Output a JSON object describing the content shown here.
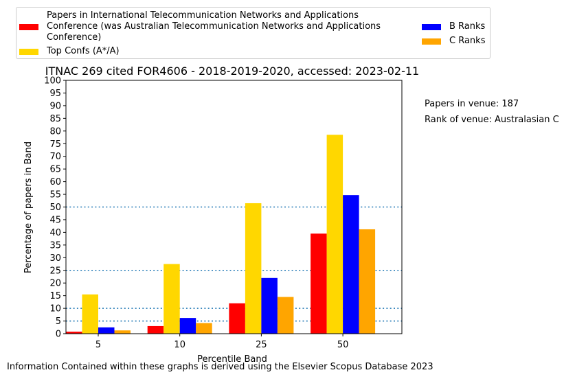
{
  "chart_data": {
    "type": "bar",
    "title": "ITNAC 269 cited FOR4606 - 2018-2019-2020, accessed: 2023-02-11",
    "xlabel": "Percentile Band",
    "ylabel": "Percentage of papers in Band",
    "categories": [
      "5",
      "10",
      "25",
      "50"
    ],
    "ylim": [
      0,
      100
    ],
    "yticks": [
      0,
      5,
      10,
      15,
      20,
      25,
      30,
      35,
      40,
      45,
      50,
      55,
      60,
      65,
      70,
      75,
      80,
      85,
      90,
      95,
      100
    ],
    "reference_lines": [
      5,
      10,
      25,
      50
    ],
    "series": [
      {
        "name": "Papers in International Telecommunication Networks and Applications Conference (was Australian Telecommunication Networks and Applications Conference)",
        "color": "#ff0000",
        "values": [
          0.8,
          3.0,
          12.0,
          39.5
        ]
      },
      {
        "name": "Top Confs (A*/A)",
        "color": "#ffd700",
        "values": [
          15.5,
          27.5,
          51.5,
          78.5
        ]
      },
      {
        "name": "B Ranks",
        "color": "#0000ff",
        "values": [
          2.5,
          6.2,
          22.0,
          54.7
        ]
      },
      {
        "name": "C Ranks",
        "color": "#ffa500",
        "values": [
          1.3,
          4.2,
          14.5,
          41.2
        ]
      }
    ],
    "legend_position": "top"
  },
  "legend": {
    "red_label": "Papers in International Telecommunication Networks and Applications\nConference (was Australian Telecommunication Networks and Applications\nConference)",
    "gold_label": "Top Confs (A*/A)",
    "blue_label": "B Ranks",
    "orange_label": "C Ranks"
  },
  "notes": {
    "papers_in_venue": "Papers in venue: 187",
    "rank_of_venue": "Rank of venue: Australasian C"
  },
  "footer": "Information Contained within these graphs is derived using the Elsevier Scopus Database 2023"
}
